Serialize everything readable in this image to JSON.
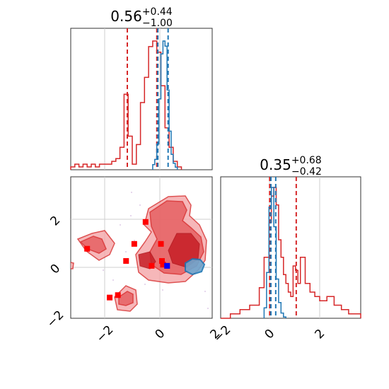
{
  "chart_data": [
    {
      "type": "histogram",
      "panel": "marginal-param-1",
      "title": {
        "value": "0.56",
        "plus": "+0.44",
        "minus": "−1.00"
      },
      "xlim": [
        -3.2,
        3.7
      ],
      "grid": true,
      "series": [
        {
          "color": "#d62728",
          "bin_edges": [
            -3.2,
            -3.0,
            -2.8,
            -2.6,
            -2.4,
            -2.2,
            -2.0,
            -1.8,
            -1.6,
            -1.4,
            -1.2,
            -1.0,
            -0.8,
            -0.6,
            -0.4,
            -0.2,
            0.0,
            0.2,
            0.4,
            0.6,
            0.8,
            1.0,
            1.2,
            1.4,
            1.6,
            1.8,
            2.0,
            2.2
          ],
          "counts": [
            0.01,
            0.02,
            0.01,
            0.02,
            0.01,
            0.02,
            0.01,
            0.02,
            0.02,
            0.02,
            0.03,
            0.04,
            0.08,
            0.27,
            0.12,
            0.02,
            0.09,
            0.24,
            0.33,
            0.44,
            0.46,
            0.42,
            0.3,
            0.15,
            0.08,
            0.03,
            0.01
          ],
          "quantiles": [
            -0.44,
            1.0
          ]
        },
        {
          "color": "#1f77b4",
          "bin_edges": [
            0.8,
            0.9,
            1.0,
            1.1,
            1.2,
            1.3,
            1.4,
            1.5,
            1.6,
            1.7,
            1.8,
            1.9,
            2.0
          ],
          "counts": [
            0.04,
            0.08,
            0.2,
            0.55,
            0.9,
            1.0,
            0.96,
            0.62,
            0.3,
            0.12,
            0.05,
            0.02
          ],
          "quantiles": [
            1.05,
            1.55
          ]
        }
      ]
    },
    {
      "type": "contour",
      "panel": "joint-param-1-vs-param-2",
      "xlim": [
        -3.2,
        3.7
      ],
      "ylim": [
        -2.1,
        3.7
      ],
      "grid": true,
      "x_ticks": [
        "−2",
        "0",
        "2"
      ],
      "y_ticks": [
        "−2",
        "0",
        "2"
      ],
      "red_points": [
        [
          -1.3,
          -1.25
        ],
        [
          -0.9,
          -1.15
        ],
        [
          -2.4,
          0.75
        ],
        [
          -0.1,
          0.95
        ],
        [
          0.45,
          1.85
        ],
        [
          -0.5,
          0.25
        ],
        [
          0.75,
          0.05
        ],
        [
          1.2,
          0.95
        ],
        [
          1.25,
          0.25
        ],
        [
          1.5,
          0.05
        ],
        [
          1.3,
          0.1
        ]
      ],
      "blue_points": [
        [
          1.5,
          0.05
        ]
      ]
    },
    {
      "type": "histogram",
      "panel": "marginal-param-2",
      "title": {
        "value": "0.35",
        "plus": "+0.68",
        "minus": "−0.42"
      },
      "xlim": [
        -2.1,
        3.7
      ],
      "grid": true,
      "x_ticks": [
        "−2",
        "0",
        "2"
      ],
      "series": [
        {
          "color": "#d62728",
          "bin_edges": [
            -2.1,
            -1.7,
            -1.3,
            -0.9,
            -0.5,
            -0.3,
            -0.1,
            0.0,
            0.1,
            0.2,
            0.3,
            0.4,
            0.5,
            0.6,
            0.7,
            0.8,
            0.9,
            1.0,
            1.1,
            1.2,
            1.4,
            1.6,
            1.8,
            2.0,
            2.3,
            2.6,
            2.9,
            3.2,
            3.7
          ],
          "counts": [
            0.0,
            0.01,
            0.02,
            0.03,
            0.07,
            0.14,
            0.22,
            0.28,
            0.3,
            0.26,
            0.18,
            0.14,
            0.1,
            0.08,
            0.06,
            0.05,
            0.12,
            0.11,
            0.08,
            0.14,
            0.08,
            0.06,
            0.05,
            0.04,
            0.05,
            0.03,
            0.02,
            0.01
          ],
          "quantiles": [
            -0.07,
            1.03
          ]
        },
        {
          "color": "#1f77b4",
          "bin_edges": [
            -0.3,
            -0.2,
            -0.1,
            0.0,
            0.1,
            0.2,
            0.3,
            0.4,
            0.5,
            0.6
          ],
          "counts": [
            0.08,
            0.35,
            0.85,
            1.0,
            0.7,
            0.3,
            0.12,
            0.04,
            0.01
          ],
          "quantiles": [
            -0.02,
            0.18
          ]
        }
      ]
    }
  ]
}
